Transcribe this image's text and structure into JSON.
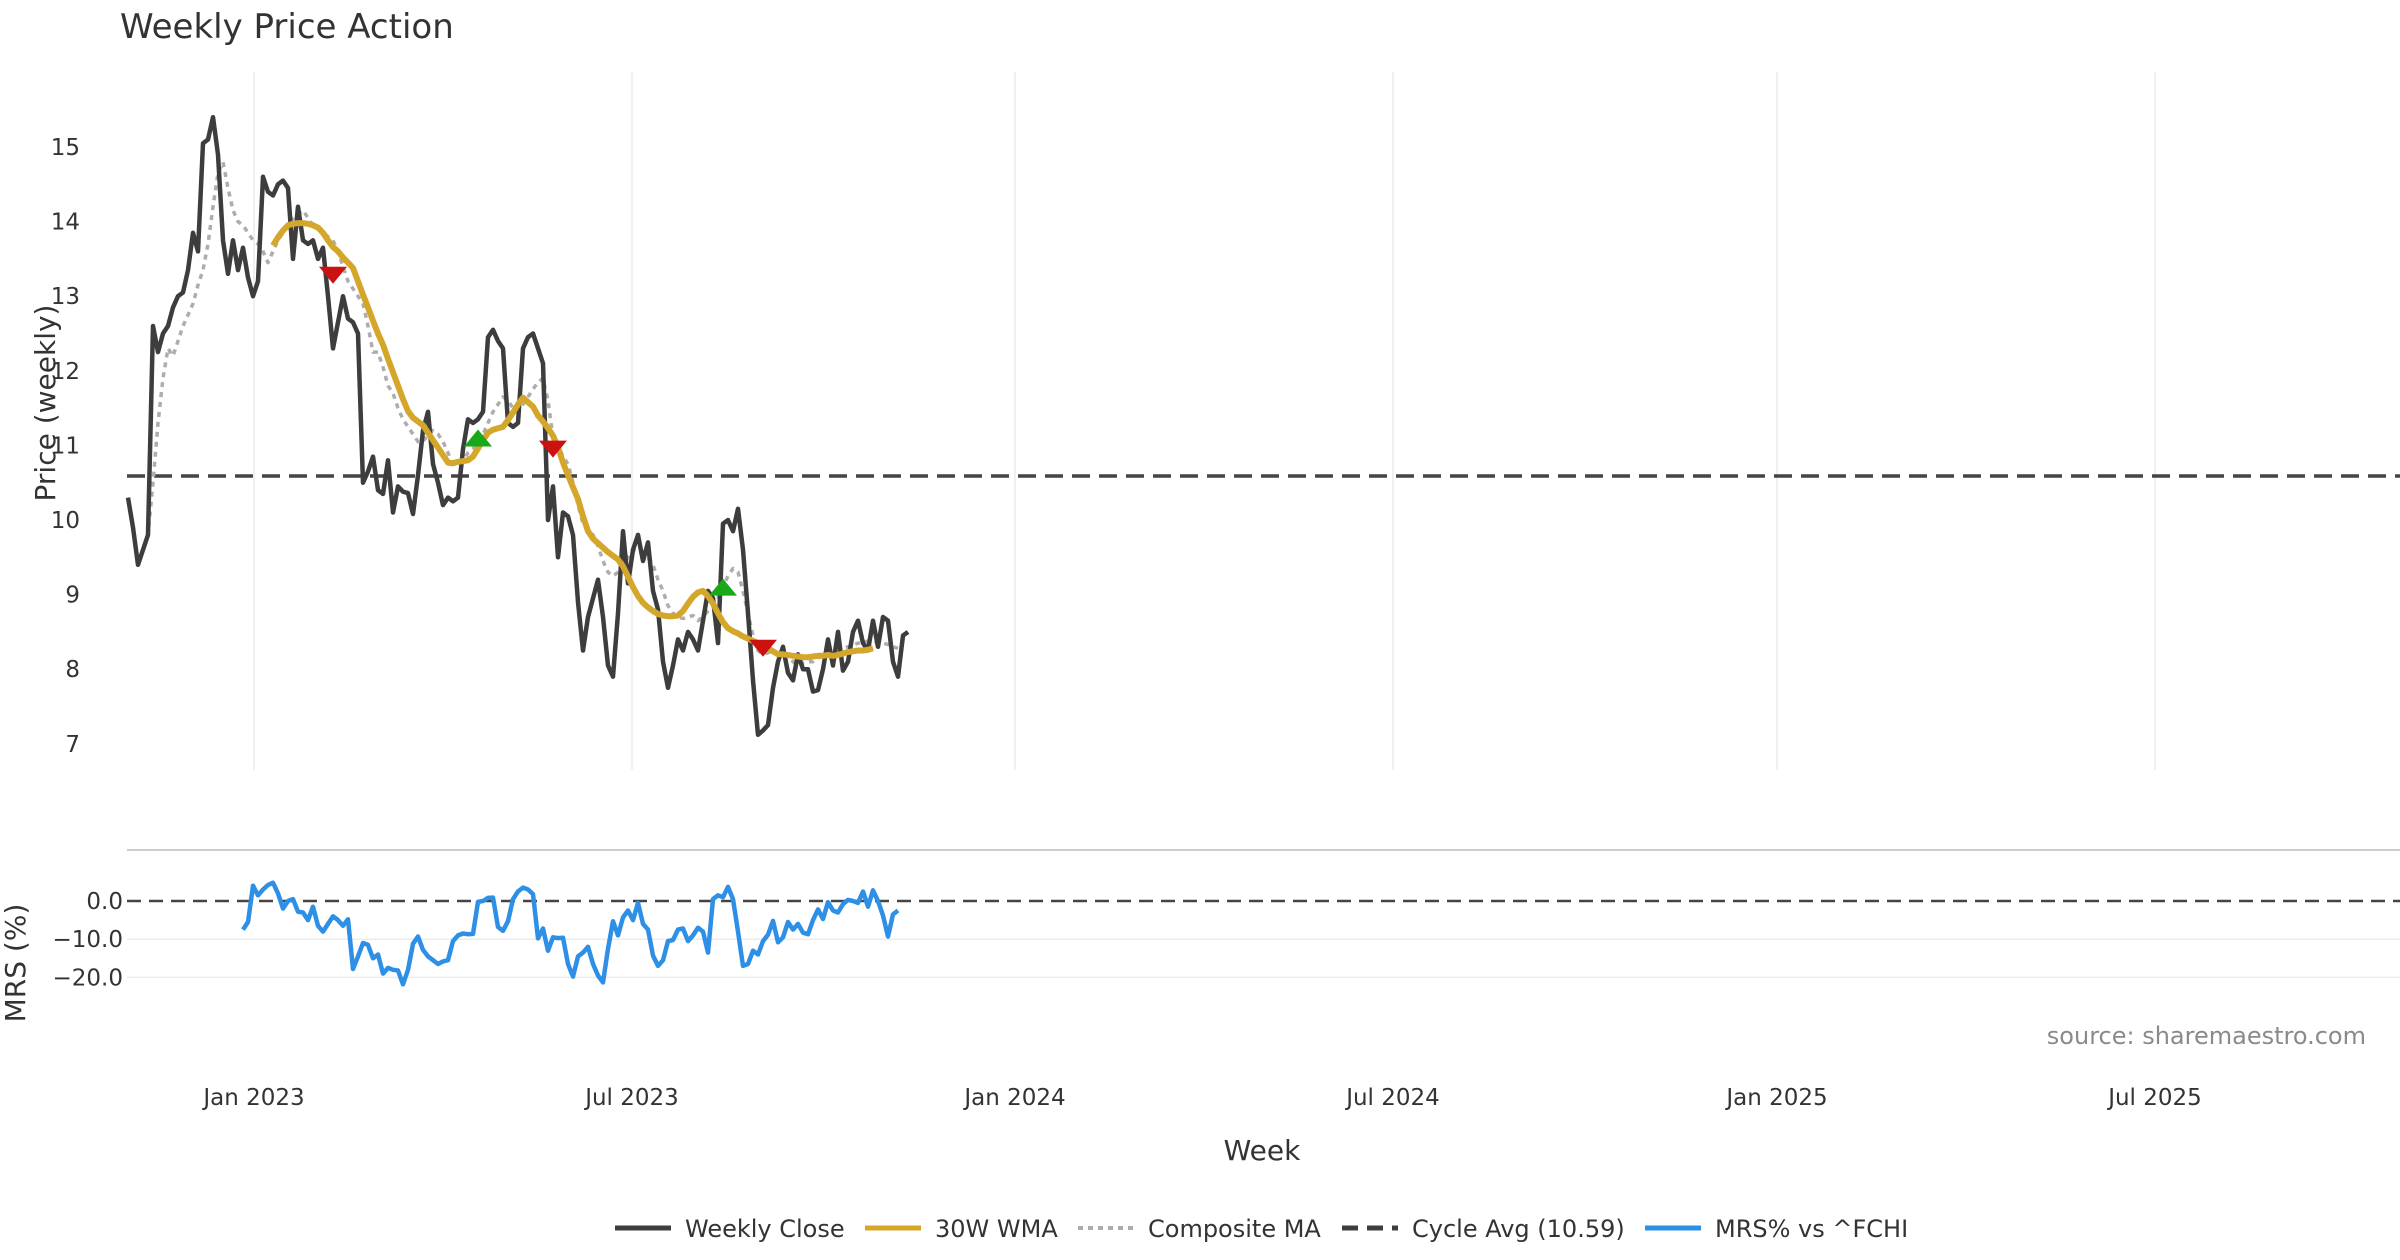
{
  "chart_data": {
    "type": "line",
    "title": "Weekly Price Action",
    "xlabel": "Week",
    "source": "source: sharemaestro.com",
    "x_ticks": [
      "Jan 2023",
      "Jul 2023",
      "Jan 2024",
      "Jul 2024",
      "Jan 2025",
      "Jul 2025"
    ],
    "price_panel": {
      "ylabel": "Price (weekly)",
      "ylim": [
        6.7,
        15.9
      ],
      "yticks": [
        "7",
        "8",
        "9",
        "10",
        "11",
        "12",
        "13",
        "14",
        "15"
      ],
      "cycle_avg": 10.59,
      "series": [
        {
          "name": "Weekly Close",
          "color": "#3d3d3d",
          "start_week": 0,
          "values": [
            10.3,
            9.9,
            9.4,
            9.6,
            9.8,
            12.6,
            12.25,
            12.5,
            12.6,
            12.85,
            13.0,
            13.05,
            13.35,
            13.85,
            13.6,
            15.05,
            15.1,
            15.4,
            14.9,
            13.75,
            13.3,
            13.75,
            13.35,
            13.65,
            13.25,
            13.0,
            13.2,
            14.6,
            14.4,
            14.35,
            14.5,
            14.55,
            14.45,
            13.5,
            14.2,
            13.75,
            13.7,
            13.75,
            13.5,
            13.65,
            13.0,
            12.3,
            12.65,
            13.0,
            12.7,
            12.65,
            12.5,
            10.5,
            10.65,
            10.85,
            10.4,
            10.35,
            10.8,
            10.1,
            10.45,
            10.38,
            10.36,
            10.08,
            10.6,
            11.2,
            11.45,
            10.75,
            10.5,
            10.2,
            10.3,
            10.25,
            10.3,
            10.95,
            11.35,
            11.3,
            11.35,
            11.45,
            12.45,
            12.55,
            12.4,
            12.3,
            11.3,
            11.25,
            11.3,
            12.3,
            12.45,
            12.5,
            12.3,
            12.1,
            10.0,
            10.45,
            9.5,
            10.1,
            10.05,
            9.8,
            8.9,
            8.25,
            8.7,
            8.95,
            9.2,
            8.7,
            8.05,
            7.9,
            8.75,
            9.85,
            9.15,
            9.6,
            9.8,
            9.45,
            9.7,
            9.05,
            8.8,
            8.1,
            7.75,
            8.05,
            8.4,
            8.25,
            8.5,
            8.4,
            8.25,
            8.65,
            9.05,
            8.95,
            8.35,
            9.95,
            10.0,
            9.85,
            10.15,
            9.6,
            8.75,
            7.85,
            7.12,
            7.18,
            7.25,
            7.75,
            8.1,
            8.3,
            7.95,
            7.85,
            8.2,
            8.0,
            8.0,
            7.7,
            7.72,
            8.0,
            8.4,
            8.05,
            8.5,
            7.98,
            8.1,
            8.5,
            8.65,
            8.35,
            8.25,
            8.65,
            8.3,
            8.7,
            8.65,
            8.1,
            7.9,
            8.45,
            8.5
          ]
        },
        {
          "name": "30W WMA",
          "color": "#d4a62a",
          "start_week": 29,
          "values": [
            13.68,
            13.79,
            13.88,
            13.95,
            13.97,
            13.98,
            13.98,
            13.97,
            13.95,
            13.92,
            13.85,
            13.75,
            13.66,
            13.6,
            13.52,
            13.45,
            13.38,
            13.2,
            13.02,
            12.85,
            12.67,
            12.5,
            12.35,
            12.16,
            11.98,
            11.8,
            11.62,
            11.46,
            11.37,
            11.32,
            11.27,
            11.17,
            11.07,
            10.97,
            10.87,
            10.77,
            10.76,
            10.78,
            10.79,
            10.8,
            10.85,
            10.96,
            11.07,
            11.17,
            11.21,
            11.23,
            11.25,
            11.34,
            11.44,
            11.55,
            11.64,
            11.58,
            11.52,
            11.4,
            11.32,
            11.23,
            11.13,
            10.97,
            10.77,
            10.6,
            10.44,
            10.28,
            10.05,
            9.85,
            9.75,
            9.69,
            9.63,
            9.57,
            9.52,
            9.47,
            9.38,
            9.24,
            9.1,
            8.98,
            8.89,
            8.83,
            8.78,
            8.74,
            8.72,
            8.71,
            8.71,
            8.72,
            8.78,
            8.88,
            8.97,
            9.03,
            9.05,
            8.98,
            8.88,
            8.75,
            8.63,
            8.55,
            8.51,
            8.48,
            8.44,
            8.41,
            8.38,
            8.35,
            8.31,
            8.28,
            8.24,
            8.2,
            8.2,
            8.19,
            8.18,
            8.17,
            8.16,
            8.16,
            8.17,
            8.18,
            8.18,
            8.19,
            8.18,
            8.19,
            8.21,
            8.23,
            8.24,
            8.25,
            8.25,
            8.26,
            8.28
          ]
        },
        {
          "name": "Composite MA",
          "color": "#adadad",
          "start_week": 2,
          "values": [
            9.4,
            9.6,
            9.8,
            10.5,
            11.3,
            11.9,
            12.3,
            12.2,
            12.4,
            12.6,
            12.75,
            12.9,
            13.15,
            13.35,
            13.7,
            14.2,
            14.65,
            14.8,
            14.45,
            14.15,
            14.0,
            13.95,
            13.85,
            13.75,
            13.7,
            13.6,
            13.45,
            13.6,
            13.75,
            13.85,
            13.95,
            14.05,
            14.1,
            14.15,
            14.05,
            13.95,
            13.9,
            13.85,
            13.8,
            13.75,
            13.6,
            13.4,
            13.2,
            13.1,
            13.0,
            12.9,
            12.6,
            12.25,
            12.25,
            12.05,
            11.8,
            11.7,
            11.5,
            11.35,
            11.25,
            11.15,
            11.05,
            11.05,
            11.15,
            11.2,
            11.15,
            11.05,
            10.9,
            10.75,
            10.75,
            10.8,
            10.9,
            10.95,
            11.05,
            11.15,
            11.3,
            11.45,
            11.55,
            11.65,
            11.6,
            11.5,
            11.45,
            11.55,
            11.65,
            11.75,
            11.85,
            11.9,
            11.6,
            11.1,
            11.0,
            10.85,
            10.75,
            10.5,
            10.2,
            9.95,
            9.85,
            9.8,
            9.65,
            9.45,
            9.3,
            9.25,
            9.3,
            9.35,
            9.5,
            9.6,
            9.6,
            9.55,
            9.5,
            9.4,
            9.2,
            9.05,
            8.85,
            8.75,
            8.7,
            8.68,
            8.7,
            8.72,
            8.65,
            8.7,
            8.78,
            8.85,
            8.95,
            9.1,
            9.25,
            9.35,
            9.3,
            9.05,
            8.75,
            8.45,
            8.25,
            8.2,
            8.22,
            8.25,
            8.22,
            8.2,
            8.18,
            8.1,
            8.05,
            8.08,
            8.1,
            8.1,
            8.15,
            8.18,
            8.2,
            8.22,
            8.25,
            8.28,
            8.3,
            8.32,
            8.35,
            8.35,
            8.38,
            8.38,
            8.36,
            8.35,
            8.33,
            8.3,
            8.28
          ]
        }
      ],
      "signals": [
        {
          "type": "sell",
          "week": 41,
          "value": 13.28
        },
        {
          "type": "buy",
          "week": 70,
          "value": 11.1
        },
        {
          "type": "sell",
          "week": 85,
          "value": 10.95
        },
        {
          "type": "buy",
          "week": 119,
          "value": 9.1
        },
        {
          "type": "sell",
          "week": 127,
          "value": 8.28
        }
      ]
    },
    "mrs_panel": {
      "ylabel": "MRS (%)",
      "ylim": [
        -22.5,
        7.0
      ],
      "yticks": [
        "0.0",
        "−10.0",
        "−20.0"
      ],
      "series": {
        "name": "MRS% vs ^FCHI",
        "color": "#2e8fe6",
        "start_week": 23,
        "values": [
          -7.5,
          -5.5,
          4.0,
          1.5,
          3.0,
          4.2,
          4.8,
          2.0,
          -2.0,
          0.0,
          0.5,
          -2.8,
          -3.0,
          -5.0,
          -1.5,
          -6.5,
          -8.0,
          -6.0,
          -4.0,
          -5.0,
          -6.5,
          -4.8,
          -17.8,
          -14.5,
          -11.0,
          -11.5,
          -15.0,
          -14.0,
          -19.0,
          -17.5,
          -18.0,
          -18.2,
          -21.8,
          -18.0,
          -11.2,
          -9.3,
          -12.8,
          -14.5,
          -15.5,
          -16.5,
          -15.8,
          -15.5,
          -10.5,
          -9.0,
          -8.5,
          -8.7,
          -8.6,
          -0.2,
          0.0,
          0.8,
          0.9,
          -6.8,
          -7.8,
          -5.3,
          0.5,
          2.5,
          3.5,
          3.0,
          1.8,
          -9.8,
          -7.2,
          -13.0,
          -9.5,
          -9.7,
          -9.6,
          -16.5,
          -19.8,
          -14.5,
          -13.5,
          -12.0,
          -16.5,
          -19.5,
          -21.3,
          -12.5,
          -5.3,
          -9.0,
          -4.3,
          -2.5,
          -5.0,
          -0.5,
          -6.0,
          -7.5,
          -14.3,
          -17.0,
          -15.5,
          -10.5,
          -10.2,
          -7.5,
          -7.2,
          -10.5,
          -9.0,
          -7.0,
          -8.0,
          -13.5,
          0.5,
          1.5,
          1.0,
          3.7,
          0.5,
          -8.0,
          -17.0,
          -16.5,
          -13.0,
          -14.0,
          -10.5,
          -8.8,
          -5.2,
          -10.8,
          -9.5,
          -5.5,
          -7.5,
          -6.0,
          -8.3,
          -8.7,
          -5.0,
          -2.2,
          -4.7,
          -0.3,
          -2.5,
          -3.0,
          -0.8,
          0.3,
          0.0,
          -0.5,
          2.5,
          -1.5,
          2.8,
          0.0,
          -3.8,
          -9.3,
          -3.5,
          -2.5
        ]
      }
    },
    "legend": [
      {
        "label": "Weekly Close",
        "color": "#3d3d3d",
        "style": "solid"
      },
      {
        "label": "30W WMA",
        "color": "#d4a62a",
        "style": "solid"
      },
      {
        "label": "Composite MA",
        "color": "#adadad",
        "style": "dotted"
      },
      {
        "label": "Cycle Avg (10.59)",
        "color": "#3d3d3d",
        "style": "dashed"
      },
      {
        "label": "MRS% vs ^FCHI",
        "color": "#2e8fe6",
        "style": "solid"
      }
    ],
    "colors": {
      "sell": "#cc1111",
      "buy": "#18a818",
      "grid": "#ececec",
      "reference": "#444444"
    }
  }
}
